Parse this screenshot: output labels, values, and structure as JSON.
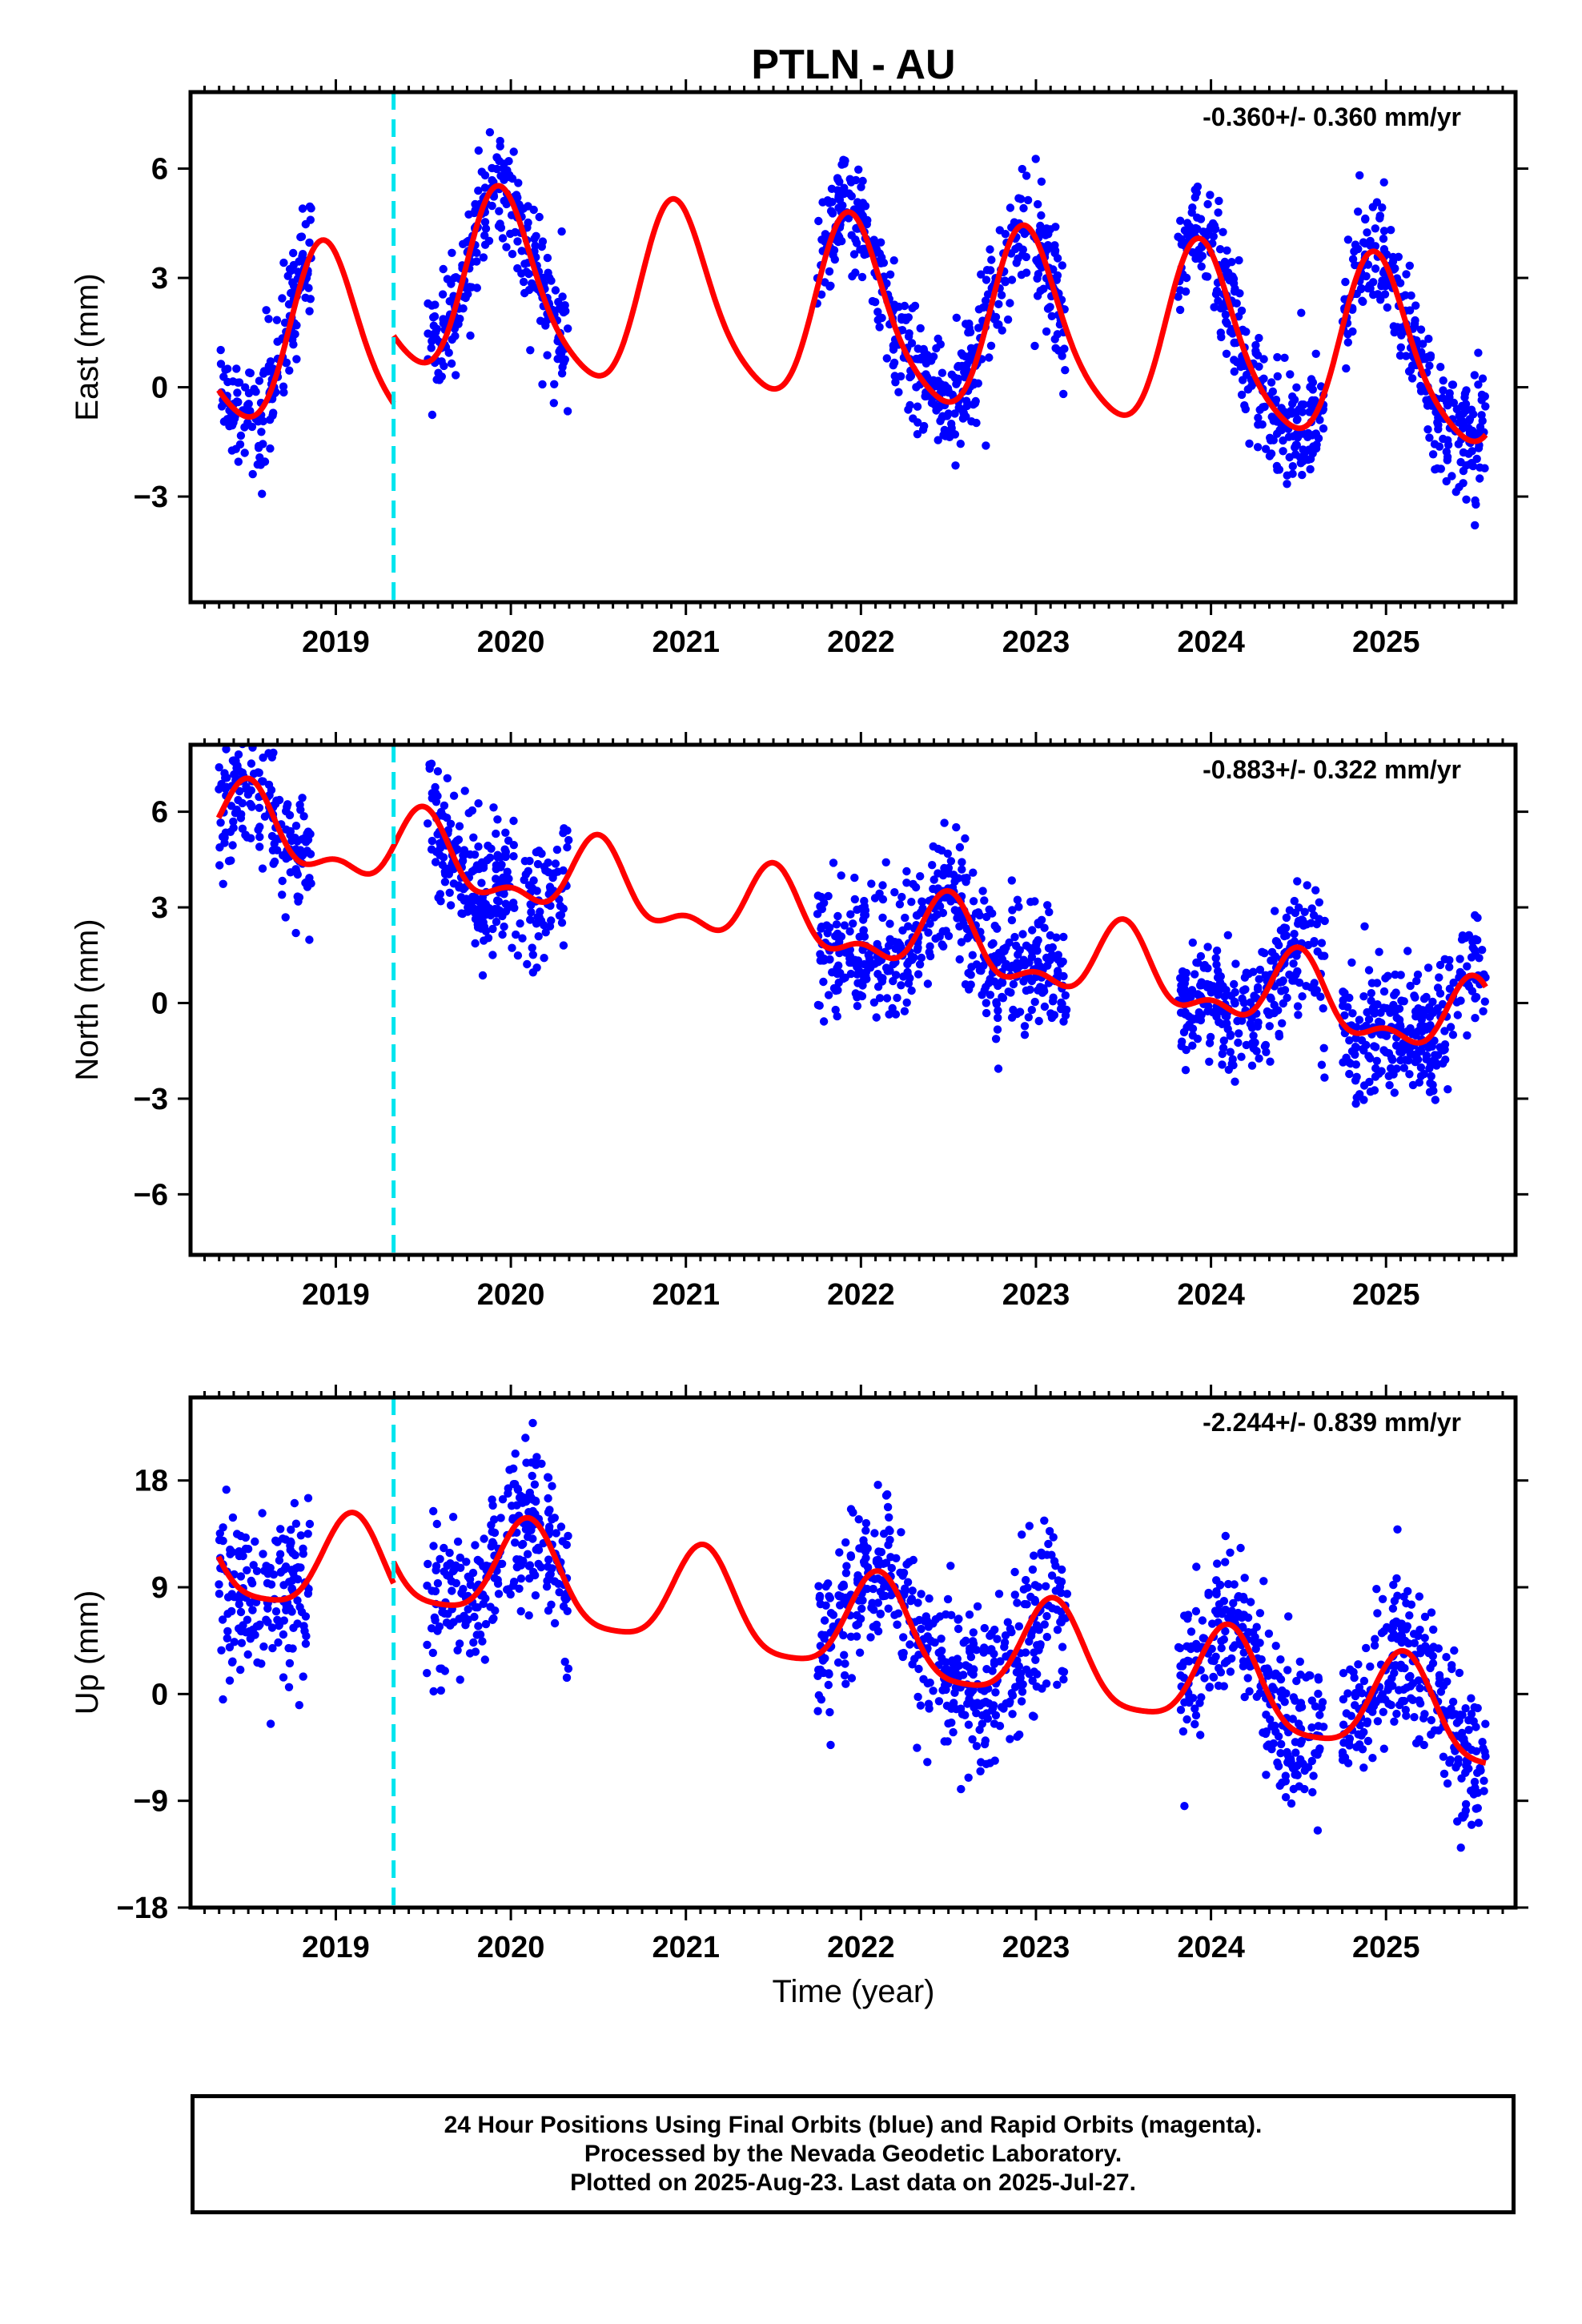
{
  "title": "PTLN - AU",
  "xlabel": "Time (year)",
  "caption": [
    "24 Hour Positions Using Final Orbits (blue) and Rapid Orbits (magenta).",
    "Processed by the Nevada Geodetic Laboratory.",
    "Plotted on 2025-Aug-23. Last data on 2025-Jul-27."
  ],
  "colors": {
    "data": "#0000ff",
    "model": "#ff0000",
    "event_line": "#00e5ee",
    "frame": "#000000"
  },
  "chart_data": [
    {
      "type": "scatter",
      "id": "east",
      "ylabel": "East (mm)",
      "rate": "-0.360+/- 0.360 mm/yr",
      "xlim": [
        2018.17,
        2025.74
      ],
      "ylim": [
        -5.9,
        8.1
      ],
      "xticks": [
        2019,
        2020,
        2021,
        2022,
        2023,
        2024,
        2025
      ],
      "yticks": [
        -3,
        0,
        3,
        6
      ],
      "event_line_x": 2019.33,
      "data_segments": [
        [
          2018.33,
          2018.86
        ],
        [
          2019.52,
          2020.33
        ],
        [
          2021.75,
          2022.85
        ],
        [
          2022.85,
          2023.18
        ],
        [
          2023.81,
          2024.65
        ],
        [
          2024.75,
          2025.57
        ]
      ],
      "scatter_sigma": 0.85,
      "model": {
        "segments": [
          [
            2018.33,
            2019.33
          ],
          [
            2019.33,
            2025.57
          ]
        ],
        "offsets": [
          0.15,
          2.0
        ],
        "rate": -0.36,
        "t0": 2021.95,
        "harmonics": [
          {
            "amp": 2.45,
            "period": 1.0,
            "peak": 2020.95
          },
          {
            "amp": 0.4,
            "period": 0.5,
            "peak": 2020.9
          }
        ]
      }
    },
    {
      "type": "scatter",
      "id": "north",
      "ylabel": "North (mm)",
      "rate": "-0.883+/- 0.322 mm/yr",
      "xlim": [
        2018.17,
        2025.74
      ],
      "ylim": [
        -7.9,
        8.1
      ],
      "xticks": [
        2019,
        2020,
        2021,
        2022,
        2023,
        2024,
        2025
      ],
      "yticks": [
        -6,
        -3,
        0,
        3,
        6
      ],
      "event_line_x": 2019.33,
      "data_segments": [
        [
          2018.33,
          2018.86
        ],
        [
          2019.52,
          2020.33
        ],
        [
          2021.75,
          2022.85
        ],
        [
          2022.85,
          2023.18
        ],
        [
          2023.81,
          2024.65
        ],
        [
          2024.75,
          2025.57
        ]
      ],
      "scatter_sigma": 1.0,
      "model": {
        "segments": [
          [
            2018.33,
            2025.57
          ]
        ],
        "offsets": [
          2.4
        ],
        "rate": -0.883,
        "t0": 2021.95,
        "harmonics": [
          {
            "amp": 1.05,
            "period": 1.0,
            "peak": 2020.5
          },
          {
            "amp": 0.55,
            "period": 0.5,
            "peak": 2020.5
          }
        ]
      }
    },
    {
      "type": "scatter",
      "id": "up",
      "ylabel": "Up (mm)",
      "rate": "-2.244+/- 0.839 mm/yr",
      "xlim": [
        2018.17,
        2025.74
      ],
      "ylim": [
        -18,
        25
      ],
      "xticks": [
        2019,
        2020,
        2021,
        2022,
        2023,
        2024,
        2025
      ],
      "yticks": [
        -18,
        -9,
        0,
        9,
        18
      ],
      "event_line_x": 2019.33,
      "data_segments": [
        [
          2018.33,
          2018.86
        ],
        [
          2019.52,
          2020.33
        ],
        [
          2021.75,
          2022.85
        ],
        [
          2022.85,
          2023.18
        ],
        [
          2023.81,
          2024.65
        ],
        [
          2024.75,
          2025.57
        ]
      ],
      "scatter_sigma": 3.3,
      "model": {
        "segments": [
          [
            2018.33,
            2019.33
          ],
          [
            2019.33,
            2025.57
          ]
        ],
        "offsets": [
          3.8,
          5.6
        ],
        "rate": -2.244,
        "t0": 2021.95,
        "harmonics": [
          {
            "amp": 4.2,
            "period": 1.0,
            "peak": 2021.1
          },
          {
            "amp": 0.9,
            "period": 0.5,
            "peak": 2021.1
          }
        ]
      }
    }
  ]
}
